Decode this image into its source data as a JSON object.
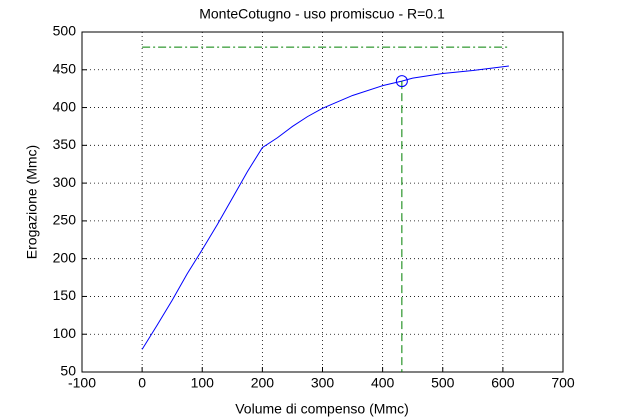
{
  "chart_data": {
    "type": "line",
    "title": "MonteCotugno  -  uso promiscuo  -   R=0.1",
    "xlabel": "Volume di compenso (Mmc)",
    "ylabel": "Erogazione (Mmc)",
    "xlim": [
      -100,
      700
    ],
    "xticks": [
      -100,
      0,
      100,
      200,
      300,
      400,
      500,
      600,
      700
    ],
    "ylim": [
      50,
      500
    ],
    "yticks": [
      50,
      100,
      150,
      200,
      250,
      300,
      350,
      400,
      450,
      500
    ],
    "grid": true,
    "series": [
      {
        "color": "#0000ff",
        "linestyle": "solid",
        "x": [
          0,
          25,
          50,
          75,
          100,
          125,
          150,
          175,
          200,
          225,
          250,
          275,
          300,
          350,
          400,
          432,
          450,
          500,
          550,
          610
        ],
        "values": [
          80,
          112,
          145,
          180,
          212,
          245,
          280,
          315,
          347,
          360,
          375,
          388,
          399,
          416,
          429,
          435,
          439,
          445,
          449,
          455
        ]
      },
      {
        "color": "#008000",
        "linestyle": "dashdot",
        "x": [
          0,
          610
        ],
        "values": [
          480,
          480
        ]
      },
      {
        "color": "#008000",
        "linestyle": "dashed",
        "x": [
          432,
          432
        ],
        "values": [
          435,
          50
        ]
      },
      {
        "color": "#0000ff",
        "linestyle": "none",
        "marker": "circle",
        "x": [
          432
        ],
        "values": [
          435
        ]
      }
    ]
  }
}
